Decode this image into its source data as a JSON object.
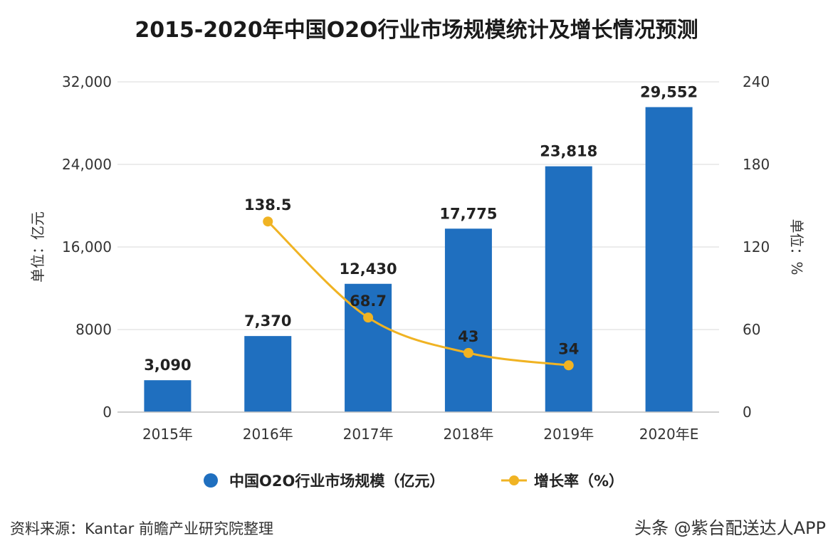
{
  "chart_data": {
    "type": "bar",
    "title": "2015-2020年中国O2O行业市场规模统计及增长情况预测",
    "categories": [
      "2015年",
      "2016年",
      "2017年",
      "2018年",
      "2019年",
      "2020年E"
    ],
    "series": [
      {
        "name": "中国O2O行业市场规模（亿元）",
        "type": "bar",
        "axis": "left",
        "values": [
          3090,
          7370,
          12430,
          17775,
          23818,
          29552
        ],
        "labels": [
          "3,090",
          "7,370",
          "12,430",
          "17,775",
          "23,818",
          "29,552"
        ],
        "color": "#1f6fbf"
      },
      {
        "name": "增长率（%）",
        "type": "line",
        "axis": "right",
        "values": [
          null,
          138.5,
          68.7,
          43,
          34,
          null
        ],
        "labels": [
          "",
          "138.5",
          "68.7",
          "43",
          "34",
          ""
        ],
        "color": "#f0b323"
      }
    ],
    "ylabel_left": "单位：亿元",
    "ylabel_right": "单位：%",
    "ylim_left": [
      0,
      32000
    ],
    "ylim_right": [
      0,
      240
    ],
    "yticks_left": [
      0,
      8000,
      16000,
      24000,
      32000
    ],
    "yticks_left_labels": [
      "0",
      "8000",
      "16,000",
      "24,000",
      "32,000"
    ],
    "yticks_right": [
      0,
      60,
      120,
      180,
      240
    ],
    "yticks_right_labels": [
      "0",
      "60",
      "120",
      "180",
      "240"
    ],
    "grid": true,
    "legend": "bottom-center"
  },
  "source": "资料来源：Kantar 前瞻产业研究院整理",
  "watermark": "头条 @紫台配送达人APP",
  "colors": {
    "bar": "#1f6fbf",
    "line": "#f0b323",
    "grid": "#d9d9d9"
  }
}
